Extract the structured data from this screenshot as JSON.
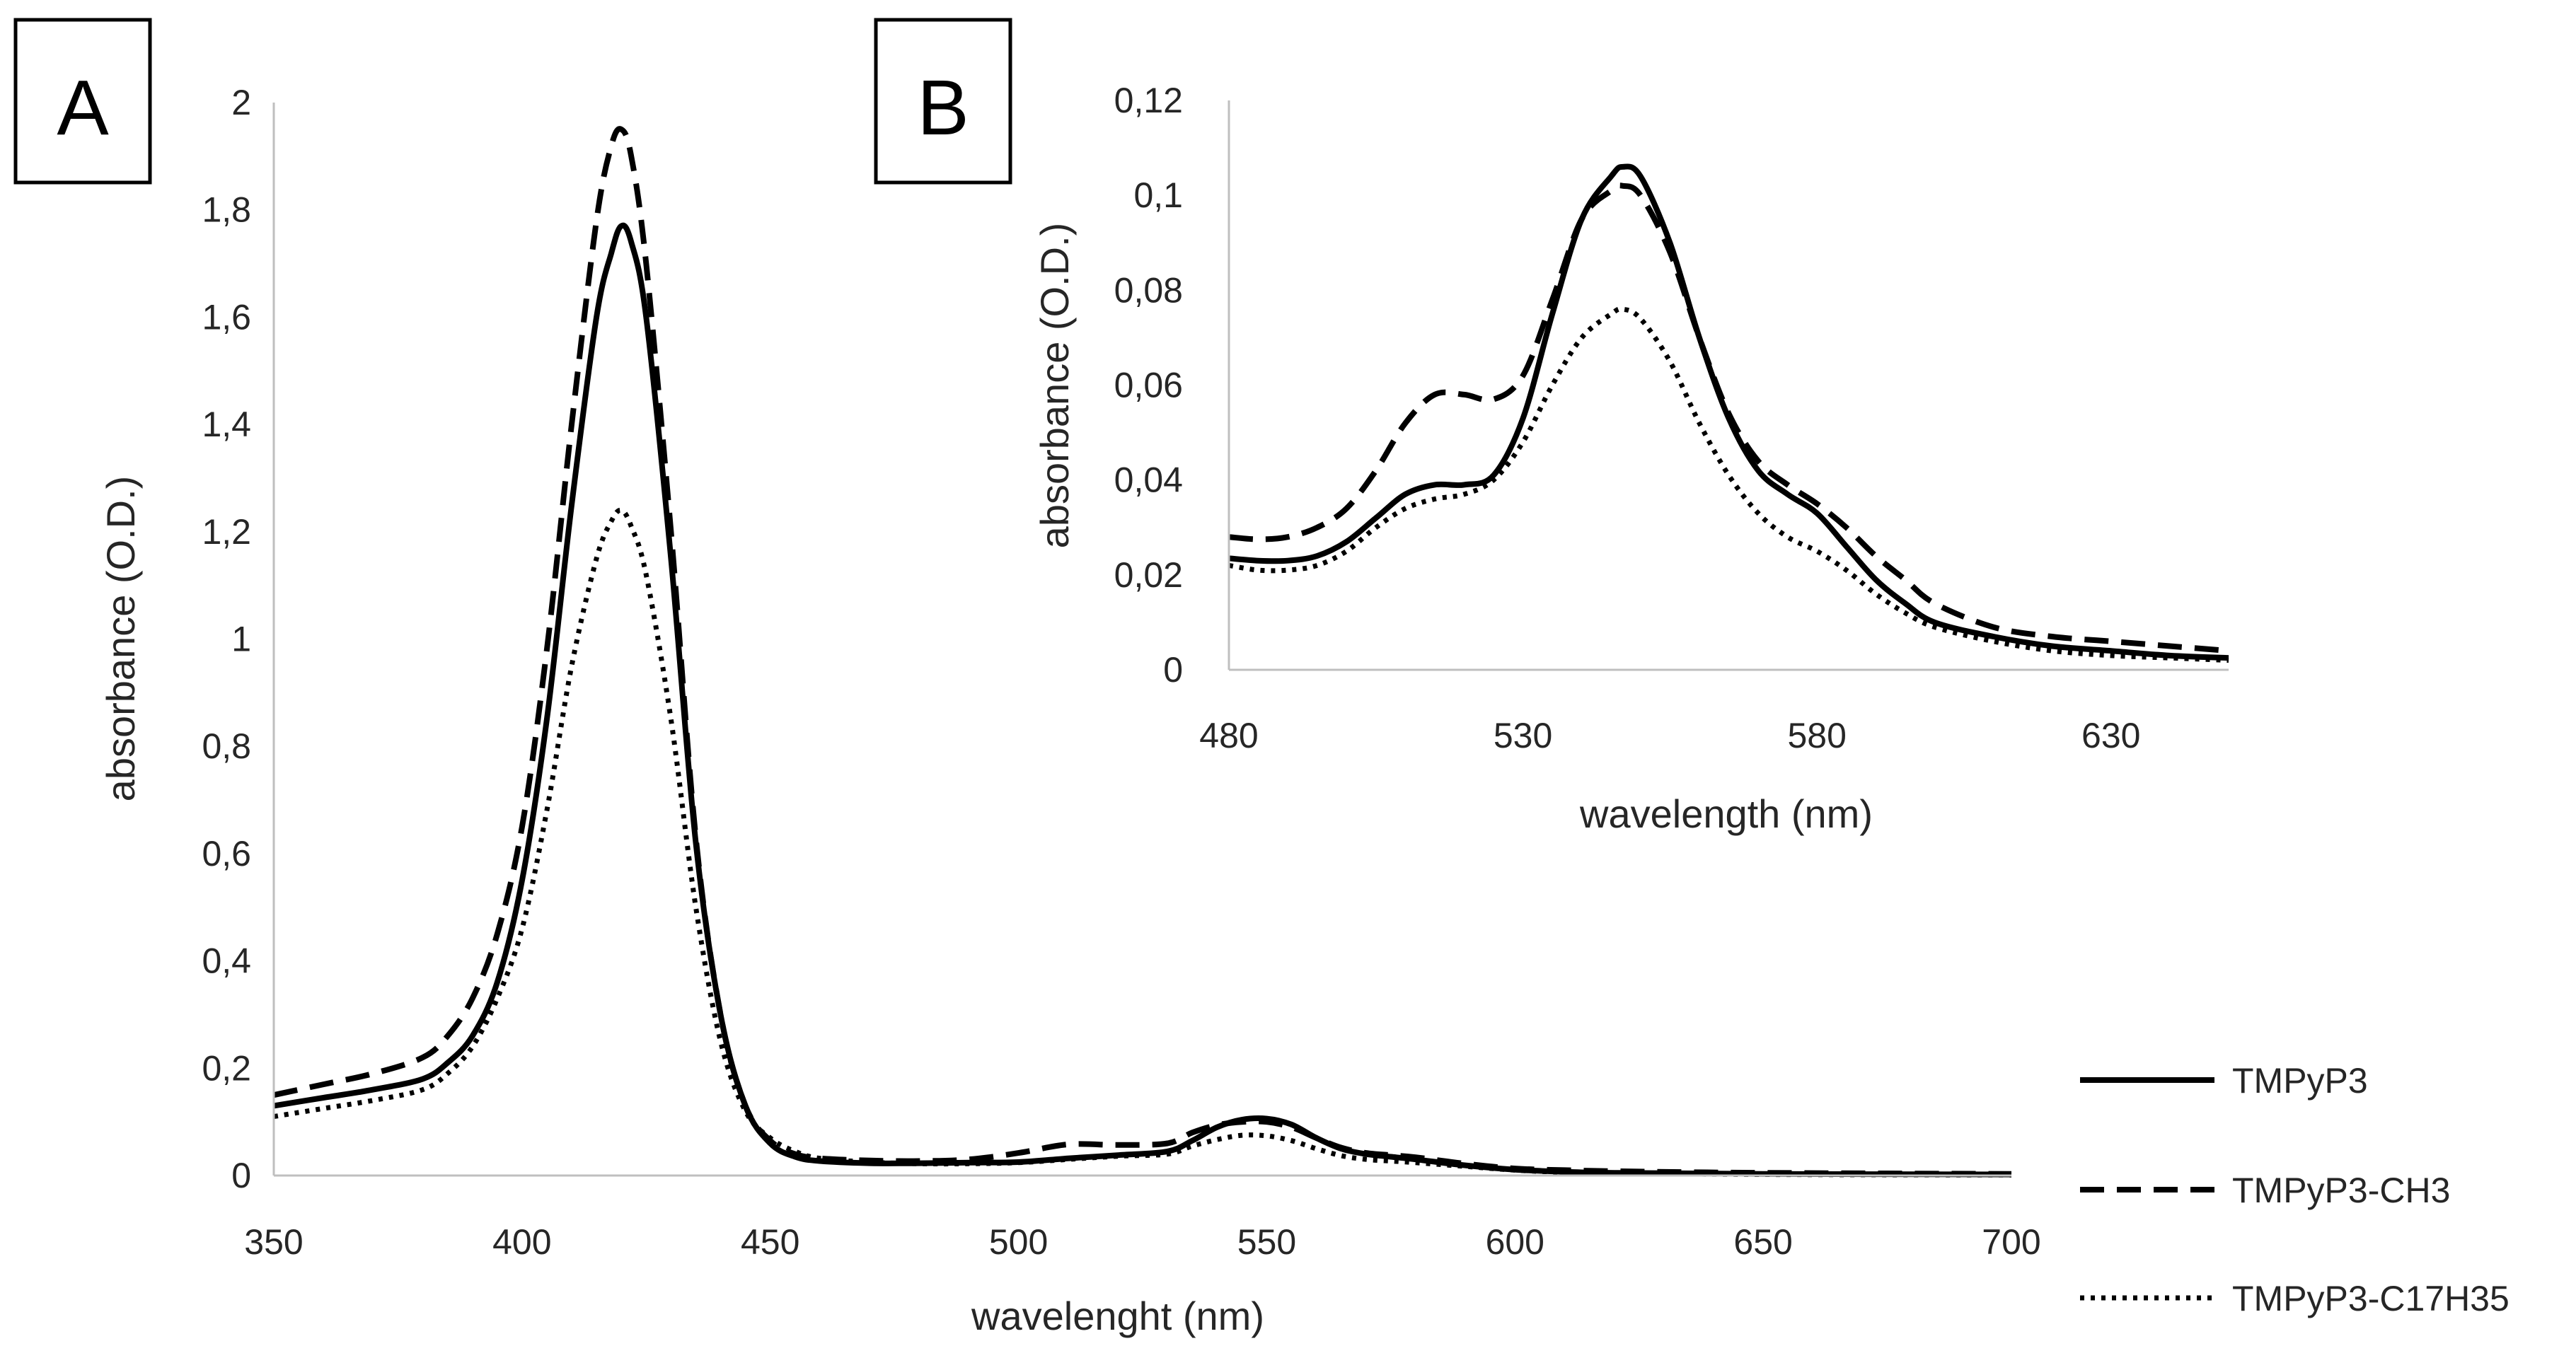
{
  "chart_data": [
    {
      "panel": "A",
      "type": "line",
      "title": "",
      "xlabel": "wavelenght (nm)",
      "ylabel": "absorbance (O.D.)",
      "xlim": [
        350,
        700
      ],
      "ylim": [
        0,
        2
      ],
      "xticks": [
        350,
        400,
        450,
        500,
        550,
        600,
        650,
        700
      ],
      "xtick_labels": [
        "350",
        "400",
        "450",
        "500",
        "550",
        "600",
        "650",
        "700"
      ],
      "yticks": [
        0,
        0.2,
        0.4,
        0.6,
        0.8,
        1,
        1.2,
        1.4,
        1.6,
        1.8,
        2
      ],
      "ytick_labels": [
        "0",
        "0,2",
        "0,4",
        "0,6",
        "0,8",
        "1",
        "1,2",
        "1,4",
        "1,6",
        "1,8",
        "2"
      ],
      "grid": false,
      "legend_position": "right",
      "series": [
        {
          "name": "TMPyP3",
          "style": "solid",
          "color": "#000000",
          "x": [
            350,
            360,
            370,
            380,
            385,
            390,
            395,
            400,
            405,
            410,
            415,
            418,
            420,
            422,
            425,
            430,
            435,
            440,
            445,
            450,
            455,
            460,
            470,
            480,
            490,
            500,
            510,
            520,
            530,
            535,
            540,
            545,
            550,
            555,
            560,
            565,
            570,
            575,
            580,
            590,
            600,
            610,
            620,
            650,
            700
          ],
          "y": [
            0.13,
            0.145,
            0.16,
            0.18,
            0.21,
            0.26,
            0.36,
            0.55,
            0.85,
            1.25,
            1.6,
            1.72,
            1.77,
            1.74,
            1.6,
            1.15,
            0.62,
            0.3,
            0.13,
            0.06,
            0.035,
            0.027,
            0.023,
            0.023,
            0.024,
            0.025,
            0.032,
            0.038,
            0.045,
            0.065,
            0.09,
            0.104,
            0.106,
            0.095,
            0.07,
            0.05,
            0.04,
            0.035,
            0.03,
            0.019,
            0.011,
            0.007,
            0.005,
            0.003,
            0.002
          ]
        },
        {
          "name": "TMPyP3-CH3",
          "style": "dashed",
          "color": "#000000",
          "x": [
            350,
            360,
            370,
            380,
            385,
            390,
            395,
            400,
            405,
            410,
            415,
            418,
            420,
            422,
            425,
            430,
            435,
            440,
            445,
            450,
            455,
            460,
            470,
            480,
            490,
            500,
            510,
            520,
            530,
            535,
            540,
            545,
            550,
            555,
            560,
            565,
            570,
            575,
            580,
            590,
            600,
            610,
            620,
            650,
            700
          ],
          "y": [
            0.15,
            0.17,
            0.19,
            0.22,
            0.26,
            0.33,
            0.45,
            0.65,
            0.98,
            1.4,
            1.78,
            1.92,
            1.95,
            1.9,
            1.7,
            1.2,
            0.63,
            0.3,
            0.13,
            0.065,
            0.04,
            0.032,
            0.028,
            0.027,
            0.03,
            0.042,
            0.058,
            0.057,
            0.06,
            0.08,
            0.094,
            0.1,
            0.1,
            0.09,
            0.07,
            0.052,
            0.042,
            0.038,
            0.034,
            0.022,
            0.013,
            0.01,
            0.008,
            0.005,
            0.003
          ]
        },
        {
          "name": "TMPyP3-C17H35",
          "style": "dotted",
          "color": "#000000",
          "x": [
            350,
            360,
            370,
            380,
            385,
            390,
            395,
            400,
            405,
            410,
            415,
            418,
            420,
            422,
            425,
            430,
            435,
            440,
            445,
            450,
            455,
            460,
            470,
            480,
            490,
            500,
            510,
            520,
            530,
            535,
            540,
            545,
            550,
            555,
            560,
            565,
            570,
            575,
            580,
            590,
            600,
            610,
            620,
            650,
            700
          ],
          "y": [
            0.11,
            0.125,
            0.14,
            0.16,
            0.19,
            0.24,
            0.33,
            0.46,
            0.68,
            0.95,
            1.15,
            1.22,
            1.24,
            1.21,
            1.12,
            0.85,
            0.5,
            0.25,
            0.12,
            0.07,
            0.045,
            0.032,
            0.025,
            0.022,
            0.022,
            0.024,
            0.03,
            0.036,
            0.04,
            0.055,
            0.067,
            0.075,
            0.074,
            0.065,
            0.05,
            0.037,
            0.03,
            0.027,
            0.024,
            0.017,
            0.01,
            0.006,
            0.004,
            0.002,
            0.001
          ]
        }
      ]
    },
    {
      "panel": "B",
      "type": "line",
      "title": "",
      "xlabel": "wavelength (nm)",
      "ylabel": "absorbance (O.D.)",
      "xlim": [
        480,
        650
      ],
      "ylim": [
        0,
        0.12
      ],
      "xticks": [
        480,
        530,
        580,
        630
      ],
      "xtick_labels": [
        "480",
        "530",
        "580",
        "630"
      ],
      "yticks": [
        0,
        0.02,
        0.04,
        0.06,
        0.08,
        0.1,
        0.12
      ],
      "ytick_labels": [
        "0",
        "0,02",
        "0,04",
        "0,06",
        "0,08",
        "0,1",
        "0,12"
      ],
      "grid": false,
      "series": [
        {
          "name": "TMPyP3",
          "style": "solid",
          "color": "#000000",
          "x": [
            480,
            485,
            490,
            495,
            500,
            505,
            510,
            515,
            520,
            525,
            530,
            535,
            540,
            545,
            547,
            550,
            555,
            560,
            565,
            570,
            575,
            580,
            585,
            590,
            595,
            600,
            610,
            620,
            630,
            640,
            650
          ],
          "y": [
            0.0235,
            0.023,
            0.023,
            0.024,
            0.027,
            0.032,
            0.037,
            0.039,
            0.039,
            0.041,
            0.053,
            0.075,
            0.095,
            0.104,
            0.106,
            0.104,
            0.09,
            0.07,
            0.053,
            0.042,
            0.037,
            0.033,
            0.026,
            0.019,
            0.014,
            0.01,
            0.007,
            0.005,
            0.004,
            0.003,
            0.0025
          ]
        },
        {
          "name": "TMPyP3-CH3",
          "style": "dashed",
          "color": "#000000",
          "x": [
            480,
            485,
            490,
            495,
            500,
            505,
            510,
            515,
            520,
            525,
            530,
            535,
            540,
            545,
            547,
            550,
            555,
            560,
            565,
            570,
            575,
            580,
            585,
            590,
            595,
            600,
            610,
            620,
            630,
            640,
            650
          ],
          "y": [
            0.028,
            0.0275,
            0.028,
            0.03,
            0.034,
            0.042,
            0.052,
            0.058,
            0.058,
            0.057,
            0.062,
            0.078,
            0.095,
            0.101,
            0.102,
            0.1,
            0.088,
            0.07,
            0.054,
            0.044,
            0.039,
            0.035,
            0.03,
            0.024,
            0.019,
            0.014,
            0.009,
            0.007,
            0.006,
            0.005,
            0.004
          ]
        },
        {
          "name": "TMPyP3-C17H35",
          "style": "dotted",
          "color": "#000000",
          "x": [
            480,
            485,
            490,
            495,
            500,
            505,
            510,
            515,
            520,
            525,
            530,
            535,
            540,
            545,
            547,
            550,
            555,
            560,
            565,
            570,
            575,
            580,
            585,
            590,
            595,
            600,
            610,
            620,
            630,
            640,
            650
          ],
          "y": [
            0.022,
            0.021,
            0.021,
            0.022,
            0.025,
            0.03,
            0.034,
            0.036,
            0.037,
            0.04,
            0.048,
            0.06,
            0.07,
            0.075,
            0.076,
            0.074,
            0.065,
            0.052,
            0.041,
            0.033,
            0.028,
            0.025,
            0.021,
            0.016,
            0.012,
            0.009,
            0.006,
            0.004,
            0.003,
            0.0025,
            0.002
          ]
        }
      ]
    }
  ]
}
